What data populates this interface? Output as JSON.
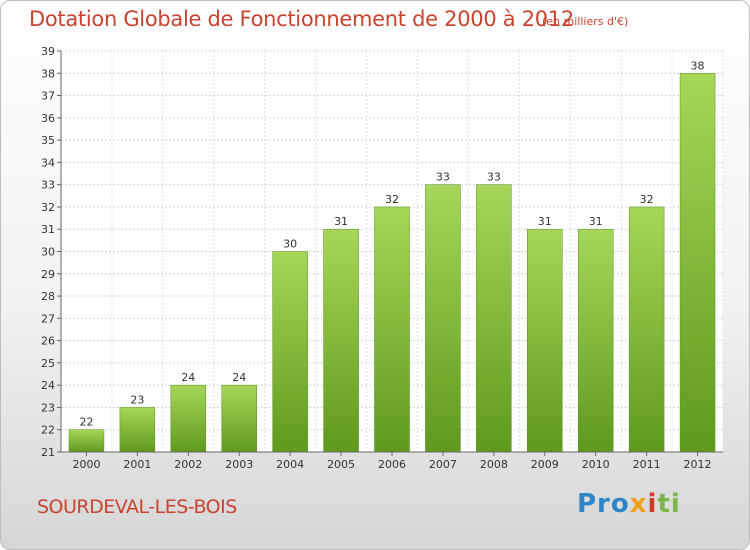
{
  "header": {
    "title": "Dotation Globale de Fonctionnement de 2000 à 2012",
    "unit": "(en milliers d'€)"
  },
  "footer": {
    "commune": "SOURDEVAL-LES-BOIS",
    "logo": {
      "p1": "Pro",
      "p2": "x",
      "p3": "i",
      "p4": "ti"
    }
  },
  "colors": {
    "bar": "#7cb82f",
    "bar_light": "#a6d65a",
    "title": "#c9432f"
  },
  "chart_data": {
    "type": "bar",
    "categories": [
      "2000",
      "2001",
      "2002",
      "2003",
      "2004",
      "2005",
      "2006",
      "2007",
      "2008",
      "2009",
      "2010",
      "2011",
      "2012"
    ],
    "values": [
      22,
      23,
      24,
      24,
      30,
      31,
      32,
      33,
      33,
      31,
      31,
      32,
      38
    ],
    "ylim": [
      21,
      39
    ],
    "yticks": [
      21,
      22,
      23,
      24,
      25,
      26,
      27,
      28,
      29,
      30,
      31,
      32,
      33,
      34,
      35,
      36,
      37,
      38,
      39
    ],
    "grid": true,
    "legend": "none"
  }
}
